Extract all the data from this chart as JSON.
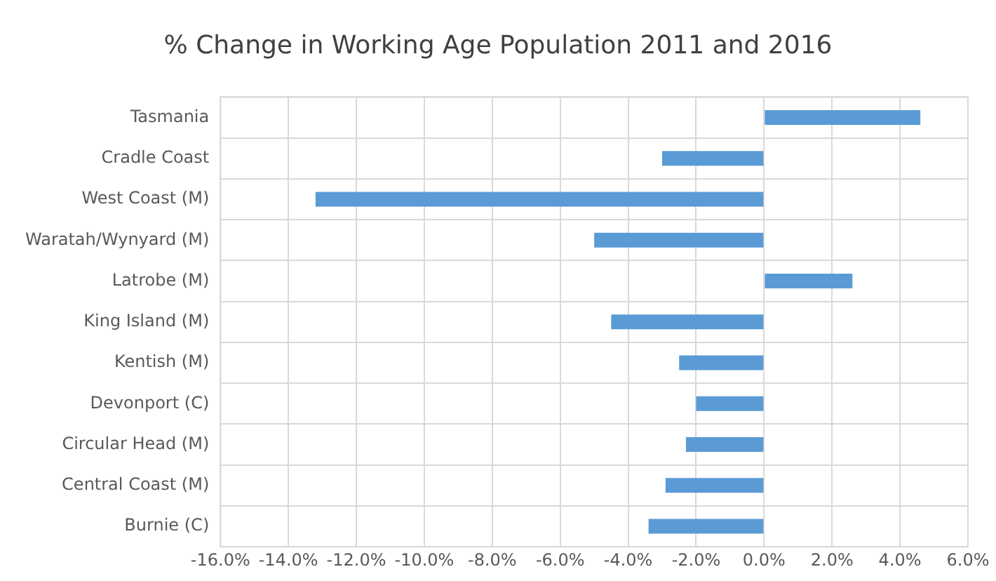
{
  "chart_data": {
    "type": "bar",
    "orientation": "horizontal",
    "title": "% Change in Working Age Population 2011 and 2016",
    "categories": [
      "Tasmania",
      "Cradle Coast",
      "West Coast (M)",
      "Waratah/Wynyard (M)",
      "Latrobe (M)",
      "King Island (M)",
      "Kentish (M)",
      "Devonport (C)",
      "Circular Head (M)",
      "Central Coast (M)",
      "Burnie (C)"
    ],
    "values": [
      4.6,
      -3.0,
      -13.2,
      -5.0,
      2.6,
      -4.5,
      -2.5,
      -2.0,
      -2.3,
      -2.9,
      -3.4
    ],
    "color": "#5b9bd5",
    "xlim": [
      -16,
      6
    ],
    "xticks": [
      {
        "value": -16,
        "label": "-16.0%"
      },
      {
        "value": -14,
        "label": "-14.0%"
      },
      {
        "value": -12,
        "label": "-12.0%"
      },
      {
        "value": -10,
        "label": "-10.0%"
      },
      {
        "value": -8,
        "label": "-8.0%"
      },
      {
        "value": -6,
        "label": "-6.0%"
      },
      {
        "value": -4,
        "label": "-4.0%"
      },
      {
        "value": -2,
        "label": "-2.0%"
      },
      {
        "value": 0,
        "label": "0.0%"
      },
      {
        "value": 2,
        "label": "2.0%"
      },
      {
        "value": 4,
        "label": "4.0%"
      },
      {
        "value": 6,
        "label": "6.0%"
      }
    ],
    "grid": true,
    "legend": false
  }
}
